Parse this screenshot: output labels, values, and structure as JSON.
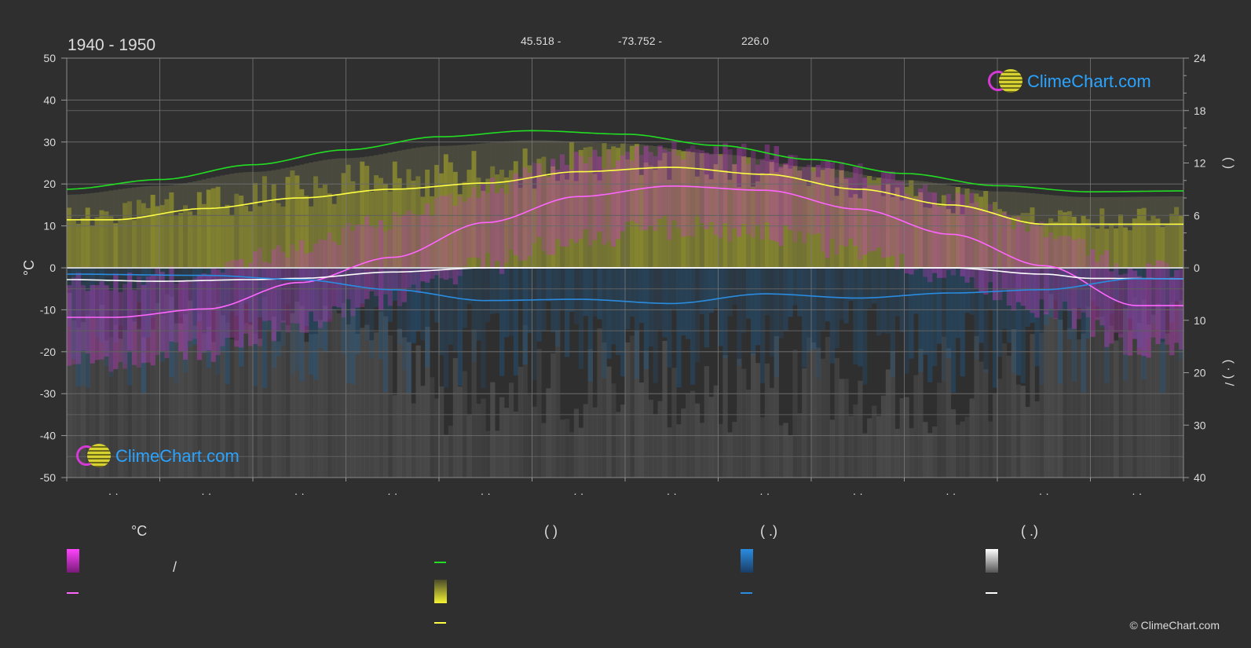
{
  "header": {
    "period": "1940 - 1950",
    "latitude": "45.518 -",
    "longitude": "-73.752 -",
    "elevation": "226.0"
  },
  "logo": {
    "text": "ClimeChart.com"
  },
  "copyright": "© ClimeChart.com",
  "legend": {
    "temp_title": "°C",
    "sun_title": "(          )",
    "rain_title": "(   .)",
    "snow_title": "(   .)",
    "temp_range_sep": "/"
  },
  "colors": {
    "background": "#2f2f2f",
    "daylight": "#22dd22",
    "sunshine": "#ffff44",
    "temperature": "#ff66ff",
    "temperature_band": "#dd22dd",
    "rain": "#2a8ce0",
    "snow": "#ffffff"
  },
  "chart_data": {
    "type": "line",
    "months": [
      "· ·",
      "· ·",
      "· ·",
      "· ·",
      "· ·",
      "· ·",
      "· ·",
      "· ·",
      "· ·",
      "· ·",
      "· ·",
      "· ·"
    ],
    "y_left": {
      "label": "°C",
      "ticks": [
        50,
        40,
        30,
        20,
        10,
        0,
        -10,
        -20,
        -30,
        -40,
        -50
      ],
      "range": [
        -50,
        50
      ]
    },
    "y_right_top": {
      "label": "(      )",
      "ticks": [
        24,
        18,
        12,
        6,
        0
      ],
      "range": [
        0,
        24
      ]
    },
    "y_right_bottom": {
      "label": "(  ·  )  /",
      "ticks": [
        0,
        10,
        20,
        30,
        40
      ],
      "range": [
        0,
        40
      ]
    },
    "grid": true,
    "series": [
      {
        "key": "daylight",
        "axis": "hours",
        "points": [
          [
            0,
            9.0
          ],
          [
            1,
            10.1
          ],
          [
            2,
            11.8
          ],
          [
            3,
            13.5
          ],
          [
            4,
            15.0
          ],
          [
            5,
            15.7
          ],
          [
            6,
            15.3
          ],
          [
            7,
            14.0
          ],
          [
            8,
            12.4
          ],
          [
            9,
            10.8
          ],
          [
            10,
            9.4
          ],
          [
            11,
            8.7
          ],
          [
            12,
            8.8
          ]
        ]
      },
      {
        "key": "sunshine",
        "axis": "hours",
        "points": [
          [
            0,
            5.5
          ],
          [
            0.5,
            5.5
          ],
          [
            1.5,
            6.8
          ],
          [
            2.5,
            8.0
          ],
          [
            3.5,
            9.0
          ],
          [
            4.5,
            9.7
          ],
          [
            5.5,
            11.0
          ],
          [
            6.5,
            11.5
          ],
          [
            7.5,
            10.7
          ],
          [
            8.5,
            9.0
          ],
          [
            9.5,
            7.2
          ],
          [
            10.5,
            5.0
          ],
          [
            11.5,
            5.0
          ],
          [
            12,
            5.0
          ]
        ]
      },
      {
        "key": "temperature",
        "axis": "celsius",
        "points": [
          [
            0,
            -11.8
          ],
          [
            0.5,
            -11.8
          ],
          [
            1.5,
            -9.8
          ],
          [
            2.5,
            -3.5
          ],
          [
            3.5,
            2.5
          ],
          [
            4.5,
            10.8
          ],
          [
            5.5,
            17.0
          ],
          [
            6.5,
            19.5
          ],
          [
            7.5,
            18.5
          ],
          [
            8.5,
            14.0
          ],
          [
            9.5,
            8.0
          ],
          [
            10.5,
            0.5
          ],
          [
            11.5,
            -9.0
          ],
          [
            12,
            -9.0
          ]
        ]
      },
      {
        "key": "snow",
        "axis": "celsius",
        "points": [
          [
            0,
            -2.8
          ],
          [
            1,
            -3.2
          ],
          [
            2,
            -2.8
          ],
          [
            2.5,
            -2.5
          ],
          [
            3.5,
            -1.0
          ],
          [
            4.5,
            0.0
          ],
          [
            9.5,
            0.0
          ],
          [
            10.5,
            -1.5
          ],
          [
            11,
            -2.5
          ],
          [
            12,
            -2.6
          ]
        ]
      },
      {
        "key": "rain",
        "axis": "celsius",
        "points": [
          [
            0,
            -1.5
          ],
          [
            1.5,
            -1.8
          ],
          [
            2.5,
            -2.8
          ],
          [
            3.5,
            -5.2
          ],
          [
            4.5,
            -7.8
          ],
          [
            5.5,
            -7.5
          ],
          [
            6.5,
            -8.5
          ],
          [
            7.5,
            -6.2
          ],
          [
            8.5,
            -7.2
          ],
          [
            9.5,
            -6.0
          ],
          [
            10.5,
            -5.2
          ],
          [
            11.5,
            -2.6
          ],
          [
            12,
            -2.6
          ]
        ]
      }
    ]
  }
}
